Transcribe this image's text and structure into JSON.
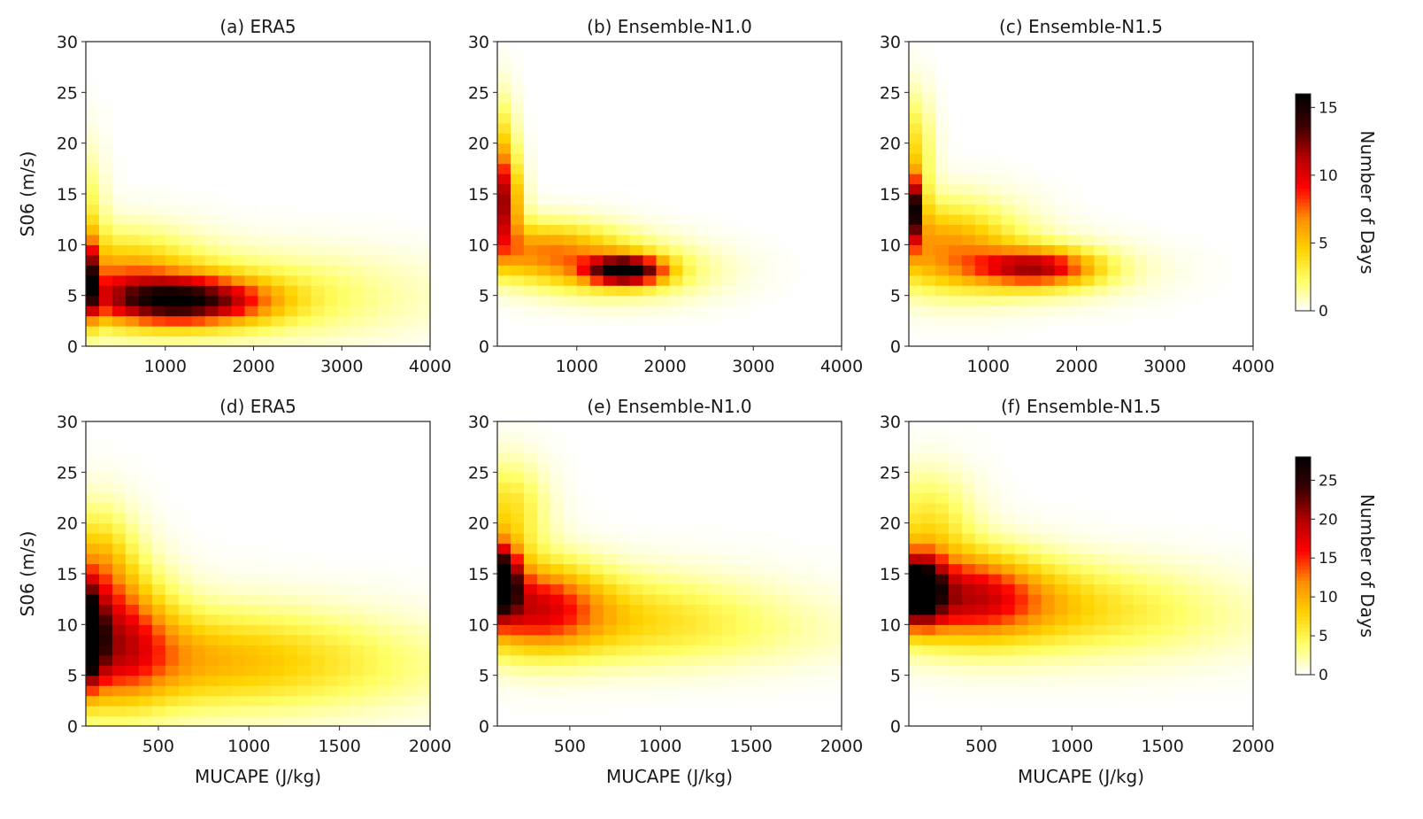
{
  "chart_data": {
    "type": "heatmap",
    "colormap": "hot_r",
    "cmap_stops": [
      "#ffffff",
      "#ffff66",
      "#ffd200",
      "#ff8c00",
      "#ff0000",
      "#b00000",
      "#3a0000",
      "#000000"
    ],
    "threshold_colors": {
      "upper": "#ff3b3b",
      "lower": "#3b3bff"
    },
    "rows": [
      {
        "colorbar": {
          "label": "Number of Days",
          "range": [
            0,
            16
          ],
          "ticks": [
            "0",
            "5",
            "10",
            "15"
          ]
        },
        "panels": [
          {
            "title": "(a) ERA5",
            "xlabel": "",
            "ylabel": "S06 (m/s)",
            "xlim": [
              100,
              4000
            ],
            "ylim": [
              0,
              30
            ],
            "xticks": [
              1000,
              2000,
              3000,
              4000
            ],
            "yticks": [
              0,
              5,
              10,
              15,
              20,
              25,
              30
            ],
            "curves": {
              "upper_k": 5000,
              "lower_k": 2600
            },
            "blobs": [
              {
                "x": 100,
                "y": 6.5,
                "sx": 60,
                "sy": 2.5,
                "a": 16
              },
              {
                "x": 1200,
                "y": 4.5,
                "sx": 650,
                "sy": 1.6,
                "a": 12
              },
              {
                "x": 500,
                "y": 7.0,
                "sx": 600,
                "sy": 3.0,
                "a": 5
              },
              {
                "x": 1800,
                "y": 5.0,
                "sx": 1400,
                "sy": 3.0,
                "a": 3
              },
              {
                "x": 100,
                "y": 12,
                "sx": 150,
                "sy": 5,
                "a": 3
              }
            ]
          },
          {
            "title": "(b) Ensemble-N1.0",
            "xlabel": "",
            "ylabel": "",
            "xlim": [
              100,
              4000
            ],
            "ylim": [
              0,
              30
            ],
            "xticks": [
              1000,
              2000,
              3000,
              4000
            ],
            "yticks": [
              0,
              5,
              10,
              15,
              20,
              25,
              30
            ],
            "curves": {
              "upper_k": 5000,
              "lower_k": 2600
            },
            "blobs": [
              {
                "x": 1550,
                "y": 7.5,
                "sx": 280,
                "sy": 0.9,
                "a": 14
              },
              {
                "x": 130,
                "y": 14,
                "sx": 150,
                "sy": 3.0,
                "a": 10
              },
              {
                "x": 600,
                "y": 9.5,
                "sx": 600,
                "sy": 2.0,
                "a": 6
              },
              {
                "x": 1500,
                "y": 7.5,
                "sx": 700,
                "sy": 2.0,
                "a": 4
              },
              {
                "x": 150,
                "y": 19,
                "sx": 120,
                "sy": 4,
                "a": 4
              }
            ]
          },
          {
            "title": "(c) Ensemble-N1.5",
            "xlabel": "",
            "ylabel": "",
            "xlim": [
              100,
              4000
            ],
            "ylim": [
              0,
              30
            ],
            "xticks": [
              1000,
              2000,
              3000,
              4000
            ],
            "yticks": [
              0,
              5,
              10,
              15,
              20,
              25,
              30
            ],
            "curves": {
              "upper_k": 5000,
              "lower_k": 2600
            },
            "blobs": [
              {
                "x": 100,
                "y": 13.5,
                "sx": 90,
                "sy": 2.2,
                "a": 16
              },
              {
                "x": 1550,
                "y": 7.8,
                "sx": 450,
                "sy": 1.2,
                "a": 8
              },
              {
                "x": 500,
                "y": 10,
                "sx": 600,
                "sy": 3.0,
                "a": 6
              },
              {
                "x": 1500,
                "y": 7.5,
                "sx": 800,
                "sy": 2.0,
                "a": 3
              },
              {
                "x": 150,
                "y": 19,
                "sx": 150,
                "sy": 4,
                "a": 4
              }
            ]
          }
        ]
      },
      {
        "colorbar": {
          "label": "Number of Days",
          "range": [
            0,
            28
          ],
          "ticks": [
            "0",
            "5",
            "10",
            "15",
            "20",
            "25"
          ]
        },
        "panels": [
          {
            "title": "(d) ERA5",
            "xlabel": "MUCAPE (J/kg)",
            "ylabel": "S06 (m/s)",
            "xlim": [
              100,
              2000
            ],
            "ylim": [
              0,
              30
            ],
            "xticks": [
              500,
              1000,
              1500,
              2000
            ],
            "yticks": [
              0,
              5,
              10,
              15,
              20,
              25,
              30
            ],
            "curves": {
              "upper_k": 3800,
              "lower_k": 2100
            },
            "blobs": [
              {
                "x": 100,
                "y": 9,
                "sx": 60,
                "sy": 3.0,
                "a": 28
              },
              {
                "x": 250,
                "y": 9,
                "sx": 220,
                "sy": 4.5,
                "a": 13
              },
              {
                "x": 700,
                "y": 7,
                "sx": 700,
                "sy": 3.5,
                "a": 7
              },
              {
                "x": 150,
                "y": 16,
                "sx": 150,
                "sy": 4,
                "a": 8
              },
              {
                "x": 1000,
                "y": 5.5,
                "sx": 900,
                "sy": 3.0,
                "a": 3
              }
            ]
          },
          {
            "title": "(e) Ensemble-N1.0",
            "xlabel": "MUCAPE (J/kg)",
            "ylabel": "",
            "xlim": [
              100,
              2000
            ],
            "ylim": [
              0,
              30
            ],
            "xticks": [
              500,
              1000,
              1500,
              2000
            ],
            "yticks": [
              0,
              5,
              10,
              15,
              20,
              25,
              30
            ],
            "curves": {
              "upper_k": 3800,
              "lower_k": 2100
            },
            "blobs": [
              {
                "x": 120,
                "y": 14.5,
                "sx": 70,
                "sy": 2.3,
                "a": 26
              },
              {
                "x": 300,
                "y": 12,
                "sx": 250,
                "sy": 3.0,
                "a": 13
              },
              {
                "x": 700,
                "y": 11,
                "sx": 600,
                "sy": 3.0,
                "a": 6
              },
              {
                "x": 150,
                "y": 21,
                "sx": 150,
                "sy": 3.5,
                "a": 7
              },
              {
                "x": 1100,
                "y": 9,
                "sx": 800,
                "sy": 2.5,
                "a": 2
              }
            ]
          },
          {
            "title": "(f) Ensemble-N1.5",
            "xlabel": "MUCAPE (J/kg)",
            "ylabel": "",
            "xlim": [
              100,
              2000
            ],
            "ylim": [
              0,
              30
            ],
            "xticks": [
              500,
              1000,
              1500,
              2000
            ],
            "yticks": [
              0,
              5,
              10,
              15,
              20,
              25,
              30
            ],
            "curves": {
              "upper_k": 3800,
              "lower_k": 2100
            },
            "blobs": [
              {
                "x": 150,
                "y": 13.5,
                "sx": 90,
                "sy": 2.2,
                "a": 26
              },
              {
                "x": 400,
                "y": 13,
                "sx": 300,
                "sy": 3.0,
                "a": 14
              },
              {
                "x": 800,
                "y": 12,
                "sx": 600,
                "sy": 3.0,
                "a": 6
              },
              {
                "x": 200,
                "y": 20,
                "sx": 180,
                "sy": 3.5,
                "a": 6
              },
              {
                "x": 1200,
                "y": 10,
                "sx": 700,
                "sy": 3.0,
                "a": 2
              }
            ]
          }
        ]
      }
    ]
  }
}
